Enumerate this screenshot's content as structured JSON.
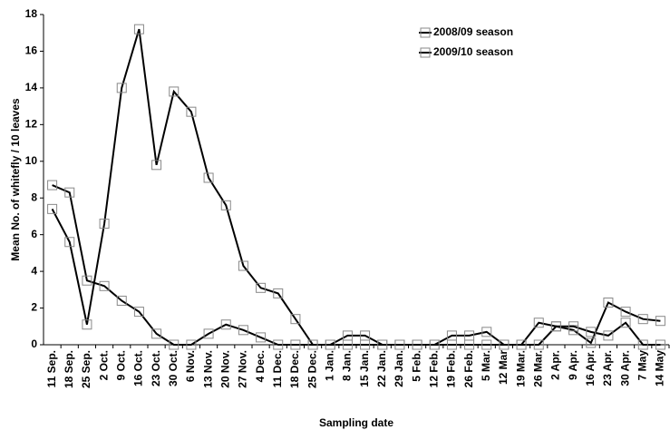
{
  "chart_data": {
    "type": "line",
    "y_label": "Mean No. of whitefly / 10 leaves",
    "x_label": "Sampling date",
    "categories": [
      "11 Sep.",
      "18 Sep.",
      "25 Sep.",
      "2 Oct.",
      "9 Oct.",
      "16 Oct.",
      "23 Oct.",
      "30 Oct.",
      "6 Nov.",
      "13 Nov.",
      "20 Nov.",
      "27 Nov.",
      "4 Dec.",
      "11 Dec.",
      "18 Dec.",
      "25 Dec.",
      "1 Jan.",
      "8 Jan.",
      "15 Jan.",
      "22 Jan.",
      "29 Jan.",
      "5 Feb.",
      "12 Feb.",
      "19 Feb.",
      "26 Feb.",
      "5 Mar.",
      "12 Mar",
      "19 Mar.",
      "26 Mar.",
      "2 Apr.",
      "9 Apr.",
      "16 Apr.",
      "23 Apr.",
      "30 Apr.",
      "7 May",
      "14 May"
    ],
    "series": [
      {
        "name": "2008/09 season",
        "color": "#000000",
        "values": [
          7.4,
          5.6,
          1.1,
          6.6,
          14.0,
          17.2,
          9.8,
          13.8,
          12.7,
          9.1,
          7.6,
          4.3,
          3.1,
          2.8,
          1.4,
          0,
          0,
          0.5,
          0.5,
          0,
          0,
          0,
          0,
          0.5,
          0.5,
          0.7,
          0,
          0,
          0,
          1.0,
          0.8,
          0.1,
          2.3,
          1.8,
          1.4,
          1.3
        ]
      },
      {
        "name": "2009/10 season",
        "color": "#000000",
        "values": [
          8.7,
          8.3,
          3.5,
          3.2,
          2.4,
          1.8,
          0.6,
          0,
          0,
          0.6,
          1.1,
          0.8,
          0.4,
          0,
          0,
          0,
          0,
          0,
          0,
          0,
          0,
          0,
          0,
          0,
          0,
          0,
          0,
          0,
          1.2,
          1.0,
          1.0,
          0.7,
          0.5,
          1.2,
          0,
          0
        ]
      }
    ],
    "ylim": [
      0,
      18
    ],
    "yticks": [
      0,
      2,
      4,
      6,
      8,
      10,
      12,
      14,
      16,
      18
    ],
    "grid": false,
    "legend": "top-right",
    "markers": "square-open"
  }
}
